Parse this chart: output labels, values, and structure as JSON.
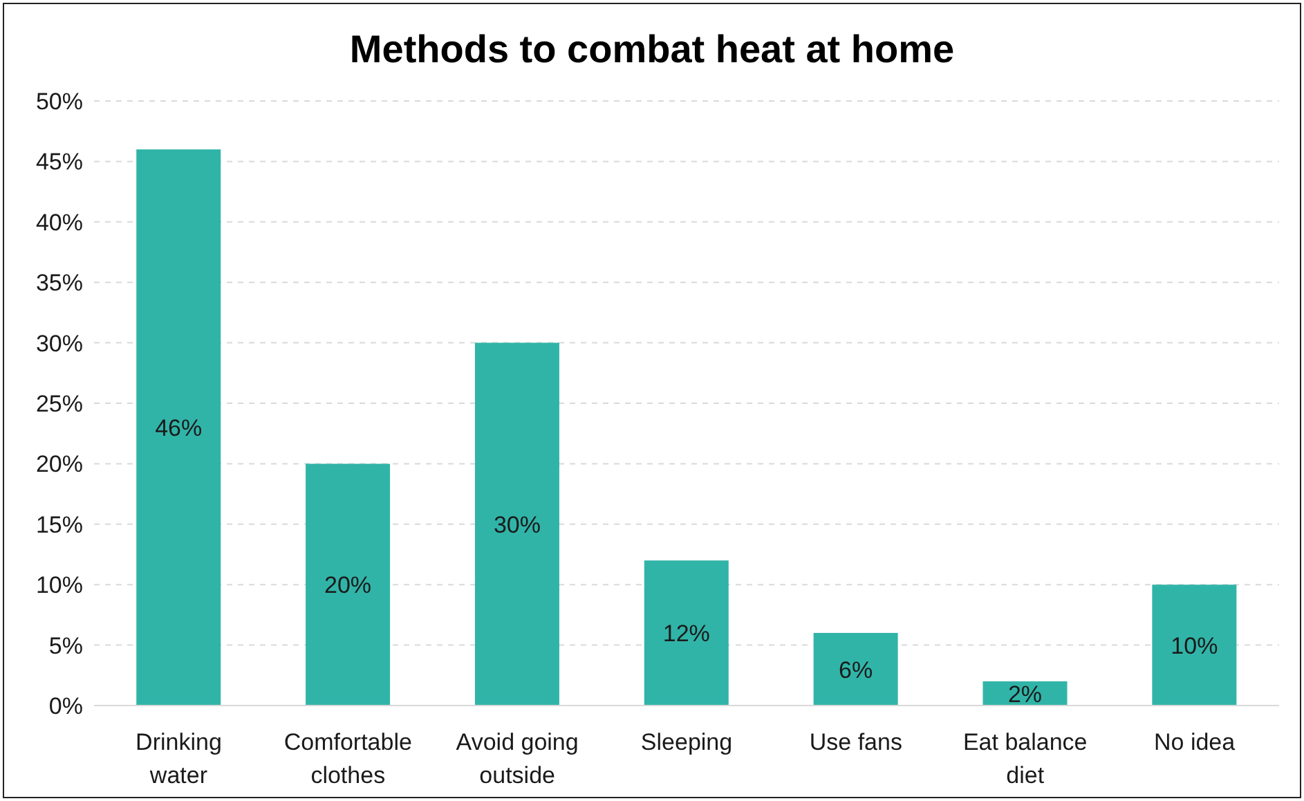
{
  "chart_data": {
    "type": "bar",
    "title": "Methods to combat heat at home",
    "categories": [
      "Drinking water",
      "Comfortable clothes",
      "Avoid going outside",
      "Sleeping",
      "Use fans",
      "Eat balance diet",
      "No idea"
    ],
    "values": [
      46,
      20,
      30,
      12,
      6,
      2,
      10
    ],
    "color": "#31b4a8",
    "ylim": [
      0,
      50
    ],
    "yticks": [
      {
        "value": 0,
        "label": "0%"
      },
      {
        "value": 5,
        "label": "5%"
      },
      {
        "value": 10,
        "label": "10%"
      },
      {
        "value": 15,
        "label": "15%"
      },
      {
        "value": 20,
        "label": "20%"
      },
      {
        "value": 25,
        "label": "25%"
      },
      {
        "value": 30,
        "label": "30%"
      },
      {
        "value": 35,
        "label": "35%"
      },
      {
        "value": 40,
        "label": "40%"
      },
      {
        "value": 45,
        "label": "45%"
      },
      {
        "value": 50,
        "label": "50%"
      }
    ],
    "grid": "y",
    "value_labels": [
      "46%",
      "20%",
      "30%",
      "12%",
      "6%",
      "2%",
      "10%"
    ]
  }
}
